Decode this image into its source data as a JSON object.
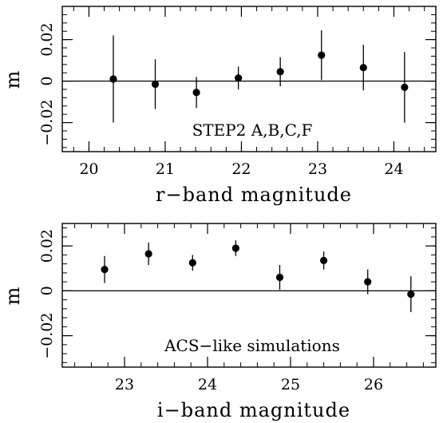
{
  "chart_data": [
    {
      "type": "scatter",
      "title": "",
      "xlabel": "r−band magnitude",
      "ylabel": "m",
      "annotation": "STEP2 A,B,C,F",
      "xlim": [
        19.65,
        24.55
      ],
      "ylim": [
        -0.034,
        0.036
      ],
      "x_ticks": [
        20,
        21,
        22,
        23,
        24
      ],
      "y_ticks": [
        -0.02,
        0,
        0.02
      ],
      "y_tick_labels": [
        "−0.02",
        "0",
        "0.02"
      ],
      "reference_line_y": 0,
      "points": [
        {
          "x": 20.32,
          "y": 0.001,
          "err": 0.021
        },
        {
          "x": 20.87,
          "y": -0.0015,
          "err": 0.012
        },
        {
          "x": 21.41,
          "y": -0.0055,
          "err": 0.0075
        },
        {
          "x": 21.96,
          "y": 0.0015,
          "err": 0.0055
        },
        {
          "x": 22.51,
          "y": 0.0045,
          "err": 0.007
        },
        {
          "x": 23.05,
          "y": 0.0125,
          "err": 0.012
        },
        {
          "x": 23.6,
          "y": 0.0065,
          "err": 0.011
        },
        {
          "x": 24.14,
          "y": -0.003,
          "err": 0.017
        }
      ]
    },
    {
      "type": "scatter",
      "title": "",
      "xlabel": "i−band magnitude",
      "ylabel": "m",
      "annotation": "ACS−like simulations",
      "xlim": [
        22.25,
        26.75
      ],
      "ylim": [
        -0.034,
        0.03
      ],
      "x_ticks": [
        23,
        24,
        25,
        26
      ],
      "y_ticks": [
        -0.02,
        0,
        0.02
      ],
      "y_tick_labels": [
        "−0.02",
        "0",
        "0.02"
      ],
      "reference_line_y": 0,
      "points": [
        {
          "x": 22.76,
          "y": 0.0095,
          "err": 0.006
        },
        {
          "x": 23.29,
          "y": 0.0165,
          "err": 0.005
        },
        {
          "x": 23.82,
          "y": 0.0125,
          "err": 0.0035
        },
        {
          "x": 24.34,
          "y": 0.019,
          "err": 0.0035
        },
        {
          "x": 24.87,
          "y": 0.006,
          "err": 0.0055
        },
        {
          "x": 25.4,
          "y": 0.0135,
          "err": 0.004
        },
        {
          "x": 25.93,
          "y": 0.004,
          "err": 0.0055
        },
        {
          "x": 26.45,
          "y": -0.0015,
          "err": 0.008
        }
      ]
    }
  ]
}
